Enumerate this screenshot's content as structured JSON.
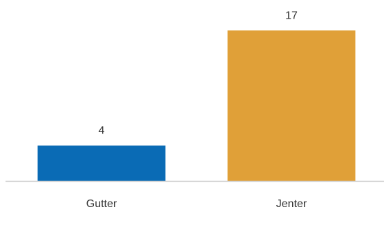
{
  "chart_data": {
    "type": "bar",
    "categories": [
      "Gutter",
      "Jenter"
    ],
    "values": [
      4,
      17
    ],
    "data_labels": [
      "4",
      "17"
    ],
    "colors": [
      "#0a6bb5",
      "#e0a038"
    ],
    "title": "",
    "xlabel": "",
    "ylabel": "",
    "ylim": [
      0,
      18.5
    ],
    "grid": false,
    "legend": "none"
  },
  "axis": {
    "color": "#cccccc"
  }
}
